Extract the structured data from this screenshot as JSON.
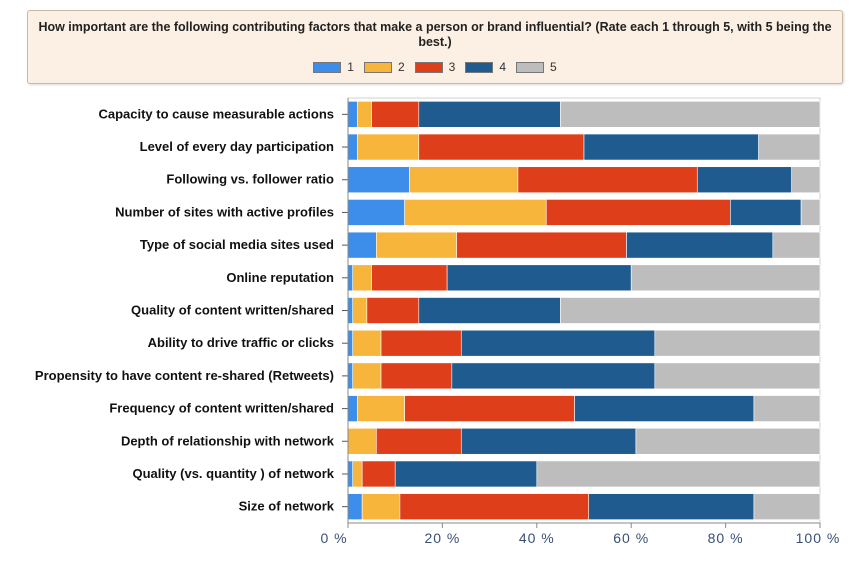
{
  "chart_data": {
    "type": "bar",
    "orientation": "horizontal",
    "stacked": true,
    "percent": true,
    "title": "How important are the following contributing factors that make a person or brand influential? (Rate each 1 through 5, with 5 being the best.)",
    "categories": [
      "Capacity to cause measurable actions",
      "Level of  every day participation",
      "Following vs. follower ratio",
      "Number of sites with active profiles",
      "Type of social media sites used",
      "Online reputation",
      "Quality of content written/shared",
      "Ability to drive traffic or clicks",
      "Propensity to have content re-shared (Retweets)",
      "Frequency of content written/shared",
      "Depth of relationship with network",
      "Quality (vs. quantity ) of network",
      "Size of network"
    ],
    "series": [
      {
        "name": "1",
        "color": "#3d8eea",
        "values": [
          2,
          2,
          13,
          12,
          6,
          1,
          1,
          1,
          1,
          2,
          0,
          1,
          3
        ]
      },
      {
        "name": "2",
        "color": "#f7b53c",
        "values": [
          3,
          13,
          23,
          30,
          17,
          4,
          3,
          6,
          6,
          10,
          6,
          2,
          8
        ]
      },
      {
        "name": "3",
        "color": "#de3e1a",
        "values": [
          10,
          35,
          38,
          39,
          36,
          16,
          11,
          17,
          15,
          36,
          18,
          7,
          40
        ]
      },
      {
        "name": "4",
        "color": "#1f5b8e",
        "values": [
          30,
          37,
          20,
          15,
          31,
          39,
          30,
          41,
          43,
          38,
          37,
          30,
          35
        ]
      },
      {
        "name": "5",
        "color": "#bdbdbd",
        "values": [
          55,
          13,
          6,
          4,
          10,
          40,
          55,
          35,
          35,
          14,
          39,
          60,
          14
        ]
      }
    ],
    "xticks": [
      "0 %",
      "20 %",
      "40 %",
      "60 %",
      "80 %",
      "100 %"
    ],
    "xlim": [
      0,
      100
    ],
    "legend_position": "top",
    "grid": false
  }
}
